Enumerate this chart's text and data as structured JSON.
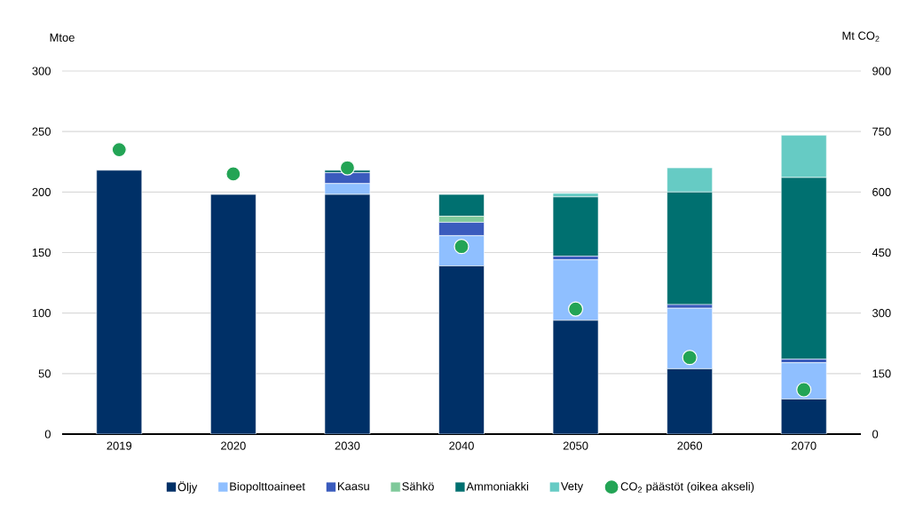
{
  "chart_data": {
    "type": "bar",
    "stacked": true,
    "ylabel": "Mtoe",
    "y2label": "Mt CO$_{2}$",
    "categories": [
      "2019",
      "2020",
      "2030",
      "2040",
      "2050",
      "2060",
      "2070"
    ],
    "series": [
      {
        "name": "Öljy",
        "color": "#003067",
        "values": [
          218,
          198,
          198,
          139,
          94,
          54,
          29
        ]
      },
      {
        "name": "Biopolttoaineet",
        "color": "#8fbfff",
        "values": [
          0,
          0,
          9,
          25,
          50,
          50,
          30
        ]
      },
      {
        "name": "Kaasu",
        "color": "#3a5bbd",
        "values": [
          0,
          0,
          9,
          11,
          3,
          3,
          3
        ]
      },
      {
        "name": "Sähkö",
        "color": "#7fc99a",
        "values": [
          0,
          0,
          0,
          5,
          0,
          0,
          0
        ]
      },
      {
        "name": "Ammoniakki",
        "color": "#007070",
        "values": [
          0,
          0,
          2,
          18,
          49,
          93,
          150
        ]
      },
      {
        "name": "Vety",
        "color": "#66cbc4",
        "values": [
          0,
          0,
          0,
          0,
          3,
          20,
          35
        ]
      },
      {
        "name": "CO$_{2}$ päästöt (oikea akseli)",
        "type": "scatter",
        "axis": "y2",
        "color": "#23a455",
        "values": [
          705,
          645,
          660,
          465,
          310,
          190,
          110
        ]
      }
    ],
    "ylim": [
      0,
      300
    ],
    "yticks": [
      0,
      50,
      100,
      150,
      200,
      250,
      300
    ],
    "y2lim": [
      0,
      900
    ],
    "y2ticks": [
      0,
      150,
      300,
      450,
      600,
      750,
      900
    ],
    "grid": "y",
    "legend": "bottom"
  }
}
